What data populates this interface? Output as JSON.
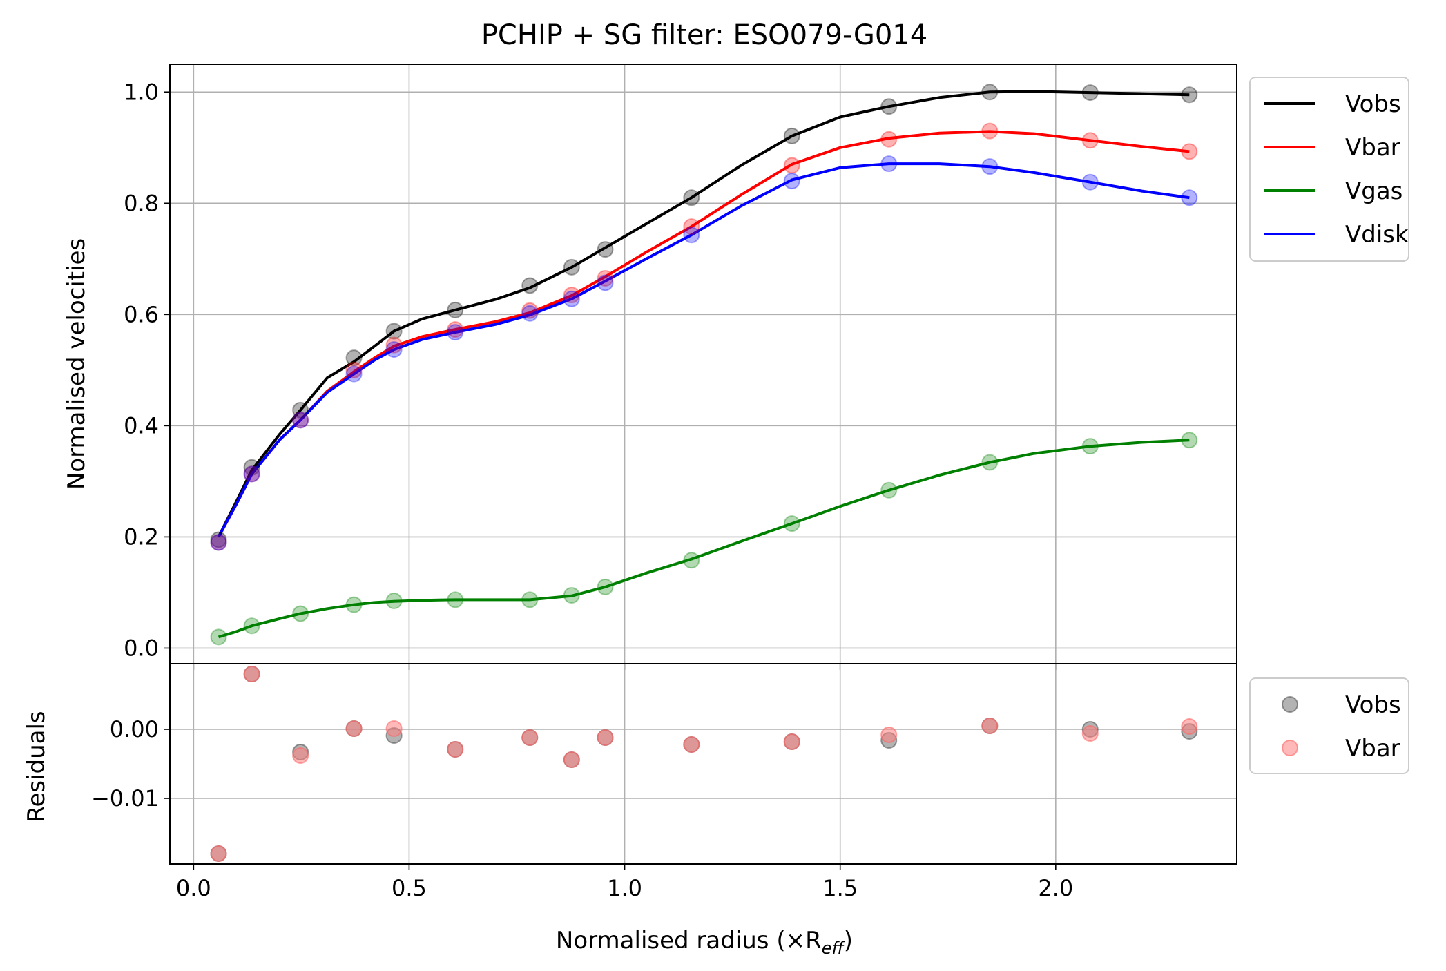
{
  "chart_data": [
    {
      "type": "line",
      "title": "PCHIP + SG filter: ESO079-G014",
      "xlabel": "",
      "ylabel": "Normalised velocities",
      "xlim": [
        -0.055,
        2.42
      ],
      "ylim": [
        -0.028,
        1.05
      ],
      "grid": true,
      "legend_placement": "outside-top-right",
      "x_ticks": [
        "0.0",
        "0.5",
        "1.0",
        "1.5",
        "2.0"
      ],
      "x_tick_values": [
        0.0,
        0.5,
        1.0,
        1.5,
        2.0
      ],
      "y_ticks": [
        "0.0",
        "0.2",
        "0.4",
        "0.6",
        "0.8",
        "1.0"
      ],
      "y_tick_values": [
        0.0,
        0.2,
        0.4,
        0.6,
        0.8,
        1.0
      ],
      "x": [
        0.058,
        0.135,
        0.248,
        0.372,
        0.465,
        0.607,
        0.78,
        0.877,
        0.955,
        1.155,
        1.388,
        1.613,
        1.847,
        2.08,
        2.31
      ],
      "series": [
        {
          "name": "Vobs",
          "color": "#000000",
          "points": [
            0.195,
            0.325,
            0.428,
            0.522,
            0.57,
            0.608,
            0.652,
            0.685,
            0.717,
            0.81,
            0.921,
            0.974,
            1.0,
            0.999,
            0.995
          ],
          "curve_x": [
            0.058,
            0.1,
            0.135,
            0.2,
            0.248,
            0.31,
            0.372,
            0.42,
            0.465,
            0.53,
            0.607,
            0.7,
            0.78,
            0.877,
            0.955,
            1.05,
            1.155,
            1.27,
            1.388,
            1.5,
            1.613,
            1.73,
            1.847,
            1.95,
            2.08,
            2.2,
            2.31
          ],
          "curve_y": [
            0.2,
            0.265,
            0.32,
            0.385,
            0.428,
            0.486,
            0.515,
            0.543,
            0.57,
            0.592,
            0.608,
            0.627,
            0.648,
            0.685,
            0.72,
            0.763,
            0.81,
            0.868,
            0.921,
            0.955,
            0.974,
            0.99,
            1.0,
            1.001,
            0.999,
            0.997,
            0.995
          ]
        },
        {
          "name": "Vbar",
          "color": "#ff0000",
          "points": [
            0.19,
            0.313,
            0.41,
            0.5,
            0.545,
            0.573,
            0.607,
            0.635,
            0.665,
            0.758,
            0.868,
            0.915,
            0.93,
            0.913,
            0.893
          ],
          "curve_x": [
            0.058,
            0.1,
            0.135,
            0.2,
            0.248,
            0.31,
            0.372,
            0.42,
            0.465,
            0.53,
            0.607,
            0.7,
            0.78,
            0.877,
            0.955,
            1.05,
            1.155,
            1.27,
            1.388,
            1.5,
            1.613,
            1.73,
            1.847,
            1.95,
            2.08,
            2.2,
            2.31
          ],
          "curve_y": [
            0.2,
            0.26,
            0.313,
            0.375,
            0.41,
            0.462,
            0.497,
            0.522,
            0.543,
            0.56,
            0.573,
            0.587,
            0.603,
            0.634,
            0.668,
            0.712,
            0.758,
            0.815,
            0.87,
            0.9,
            0.917,
            0.926,
            0.929,
            0.925,
            0.913,
            0.902,
            0.893
          ]
        },
        {
          "name": "Vgas",
          "color": "#008000",
          "points": [
            0.02,
            0.04,
            0.062,
            0.078,
            0.085,
            0.087,
            0.087,
            0.095,
            0.11,
            0.158,
            0.224,
            0.284,
            0.334,
            0.363,
            0.374
          ],
          "curve_x": [
            0.058,
            0.1,
            0.135,
            0.2,
            0.248,
            0.31,
            0.372,
            0.42,
            0.465,
            0.53,
            0.607,
            0.7,
            0.78,
            0.877,
            0.955,
            1.05,
            1.155,
            1.27,
            1.388,
            1.5,
            1.613,
            1.73,
            1.847,
            1.95,
            2.08,
            2.2,
            2.31
          ],
          "curve_y": [
            0.02,
            0.03,
            0.04,
            0.053,
            0.062,
            0.071,
            0.078,
            0.082,
            0.084,
            0.086,
            0.087,
            0.087,
            0.087,
            0.094,
            0.11,
            0.135,
            0.16,
            0.192,
            0.224,
            0.255,
            0.284,
            0.311,
            0.334,
            0.35,
            0.363,
            0.37,
            0.374
          ]
        },
        {
          "name": "Vdisk",
          "color": "#0000ff",
          "points": [
            0.19,
            0.313,
            0.41,
            0.493,
            0.537,
            0.568,
            0.602,
            0.628,
            0.657,
            0.743,
            0.84,
            0.871,
            0.866,
            0.838,
            0.81
          ],
          "curve_x": [
            0.058,
            0.1,
            0.135,
            0.2,
            0.248,
            0.31,
            0.372,
            0.42,
            0.465,
            0.53,
            0.607,
            0.7,
            0.78,
            0.877,
            0.955,
            1.05,
            1.155,
            1.27,
            1.388,
            1.5,
            1.613,
            1.73,
            1.847,
            1.95,
            2.08,
            2.2,
            2.31
          ],
          "curve_y": [
            0.2,
            0.26,
            0.313,
            0.375,
            0.41,
            0.46,
            0.493,
            0.518,
            0.537,
            0.555,
            0.568,
            0.582,
            0.599,
            0.628,
            0.66,
            0.7,
            0.743,
            0.795,
            0.842,
            0.864,
            0.871,
            0.871,
            0.866,
            0.855,
            0.838,
            0.822,
            0.81
          ]
        }
      ],
      "legend": [
        "Vobs",
        "Vbar",
        "Vgas",
        "Vdisk"
      ]
    },
    {
      "type": "scatter",
      "title": "",
      "xlabel": "Normalised radius (×R",
      "xlabel_sub": "eff",
      "xlabel_end": ")",
      "ylabel": "Residuals",
      "xlim": [
        -0.055,
        2.42
      ],
      "ylim": [
        -0.0195,
        0.0095
      ],
      "grid": true,
      "legend_placement": "outside-top-right",
      "x_ticks": [
        "0.0",
        "0.5",
        "1.0",
        "1.5",
        "2.0"
      ],
      "x_tick_values": [
        0.0,
        0.5,
        1.0,
        1.5,
        2.0
      ],
      "y_ticks": [
        "0.00",
        "−0.01"
      ],
      "y_tick_values": [
        0.0,
        -0.01
      ],
      "x": [
        0.058,
        0.135,
        0.248,
        0.372,
        0.465,
        0.607,
        0.78,
        0.877,
        0.955,
        1.155,
        1.388,
        1.613,
        1.847,
        2.08,
        2.31
      ],
      "series": [
        {
          "name": "Vobs",
          "color": "#808080",
          "values": [
            -0.018,
            0.008,
            -0.0033,
            0.0001,
            -0.0009,
            -0.0029,
            -0.0012,
            -0.0044,
            -0.0012,
            -0.0022,
            -0.0018,
            -0.0016,
            0.0005,
            0.0,
            -0.0003
          ]
        },
        {
          "name": "Vbar",
          "color": "#ff8080",
          "values": [
            -0.018,
            0.008,
            -0.0038,
            0.0001,
            0.0001,
            -0.0029,
            -0.0012,
            -0.0044,
            -0.0012,
            -0.0022,
            -0.0018,
            -0.0008,
            0.0005,
            -0.0006,
            0.0004
          ]
        }
      ],
      "legend": [
        "Vobs",
        "Vbar"
      ]
    }
  ]
}
